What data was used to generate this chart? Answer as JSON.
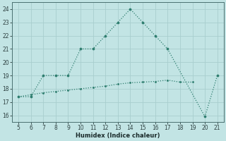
{
  "xlabel": "Humidex (Indice chaleur)",
  "x_line1": [
    5,
    6,
    7,
    8,
    9,
    10,
    11,
    12,
    13,
    14,
    15,
    16,
    17,
    20,
    21
  ],
  "y_line1": [
    17.4,
    17.4,
    19.0,
    19.0,
    19.0,
    21.0,
    21.0,
    22.0,
    23.0,
    24.0,
    23.0,
    22.0,
    21.0,
    15.9,
    19.0
  ],
  "x_line2": [
    5,
    6,
    7,
    8,
    9,
    10,
    11,
    12,
    13,
    14,
    15,
    16,
    17,
    18,
    19
  ],
  "y_line2": [
    17.4,
    17.55,
    17.7,
    17.8,
    17.9,
    18.0,
    18.1,
    18.2,
    18.35,
    18.45,
    18.5,
    18.55,
    18.65,
    18.5,
    18.5
  ],
  "line_color": "#2d7d6e",
  "bg_color": "#c2e4e4",
  "grid_color": "#a8cece",
  "xlim": [
    4.5,
    21.5
  ],
  "ylim": [
    15.5,
    24.5
  ],
  "xticks": [
    5,
    6,
    7,
    8,
    9,
    10,
    11,
    12,
    13,
    14,
    15,
    16,
    17,
    18,
    19,
    20,
    21
  ],
  "yticks": [
    16,
    17,
    18,
    19,
    20,
    21,
    22,
    23,
    24
  ]
}
